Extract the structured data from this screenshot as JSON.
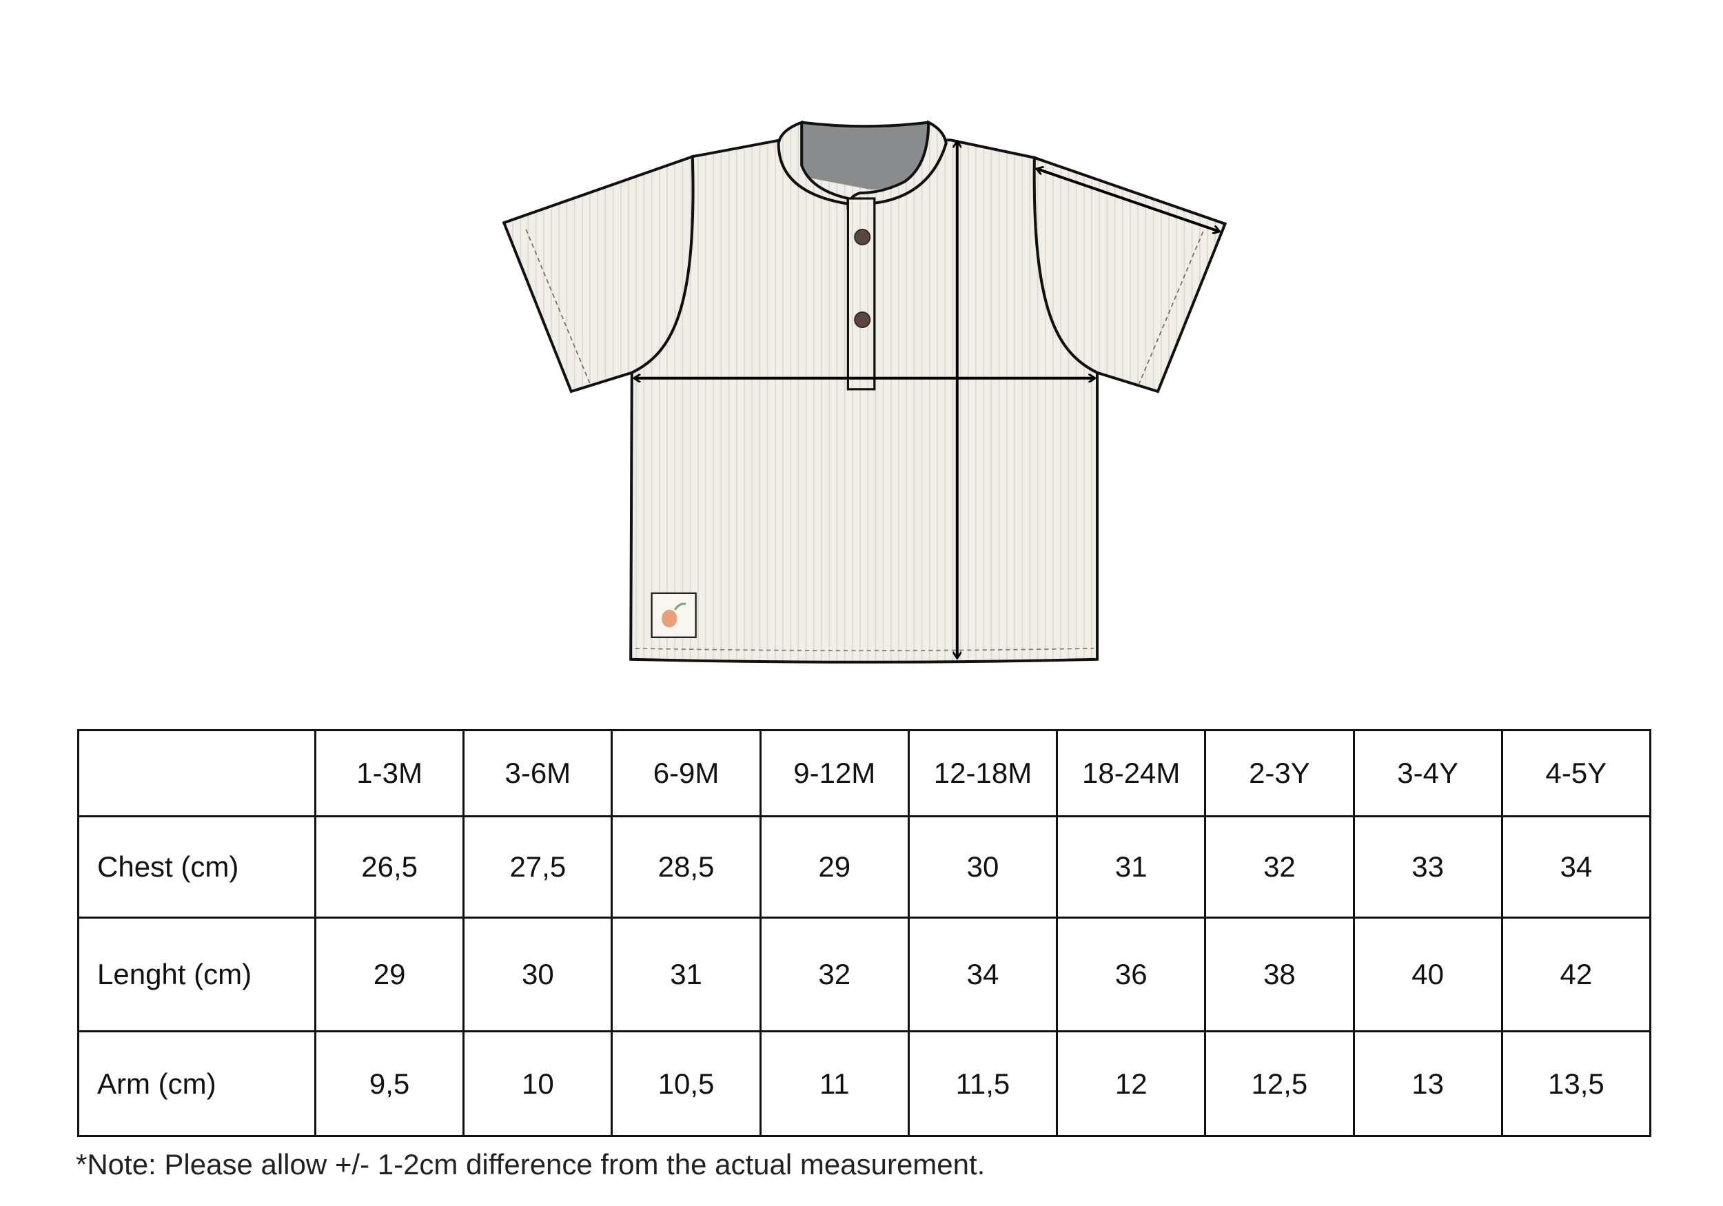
{
  "illustration": {
    "description_icons": [
      "shirt-illustration",
      "chest-arrow",
      "length-arrow",
      "arm-arrow",
      "peach-label-icon"
    ],
    "colors": {
      "fabric": "#f0eee8",
      "stripe": "#ddd6cc",
      "outline": "#111111",
      "collar_inner": "#8a8b8c",
      "button": "#5a463d",
      "arrow": "#000000"
    }
  },
  "table": {
    "sizes": [
      "1-3M",
      "3-6M",
      "6-9M",
      "9-12M",
      "12-18M",
      "18-24M",
      "2-3Y",
      "3-4Y",
      "4-5Y"
    ],
    "rows": [
      {
        "label": "Chest (cm)",
        "values": [
          "26,5",
          "27,5",
          "28,5",
          "29",
          "30",
          "31",
          "32",
          "33",
          "34"
        ]
      },
      {
        "label": "Lenght (cm)",
        "values": [
          "29",
          "30",
          "31",
          "32",
          "34",
          "36",
          "38",
          "40",
          "42"
        ]
      },
      {
        "label": "Arm (cm)",
        "values": [
          "9,5",
          "10",
          "10,5",
          "11",
          "11,5",
          "12",
          "12,5",
          "13",
          "13,5"
        ]
      }
    ]
  },
  "note": "*Note: Please allow +/- 1-2cm difference from the actual measurement."
}
